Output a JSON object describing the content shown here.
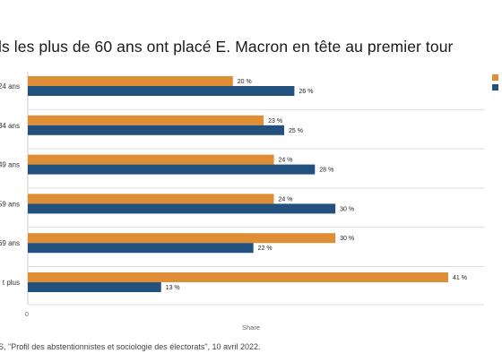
{
  "title": "ls les plus de 60 ans ont placé E. Macron en tête au premier tour",
  "source": "S, \"Profil des abstentionnistes et sociologie des électorats\", 10 avril 2022.",
  "colors": {
    "series1": "#E08E36",
    "series2": "#22507F",
    "grid": "#dddddd",
    "text": "#333333"
  },
  "chart_data": {
    "type": "bar",
    "orientation": "horizontal",
    "categories": [
      "24 ans",
      "34 ans",
      "49 ans",
      "59 ans",
      "69 ans",
      "t plus"
    ],
    "series": [
      {
        "values": [
          20,
          23,
          24,
          24,
          30,
          41
        ],
        "labels": [
          "20 %",
          "23 %",
          "24 %",
          "24 %",
          "30 %",
          "41 %"
        ]
      },
      {
        "values": [
          26,
          25,
          28,
          30,
          22,
          13
        ],
        "labels": [
          "26 %",
          "25 %",
          "28 %",
          "30 %",
          "22 %",
          "13 %"
        ]
      }
    ],
    "xlabel": "Share",
    "xticks": [
      "0"
    ],
    "xlim": [
      0,
      41
    ],
    "grid": false,
    "legend_position": "top-right"
  }
}
